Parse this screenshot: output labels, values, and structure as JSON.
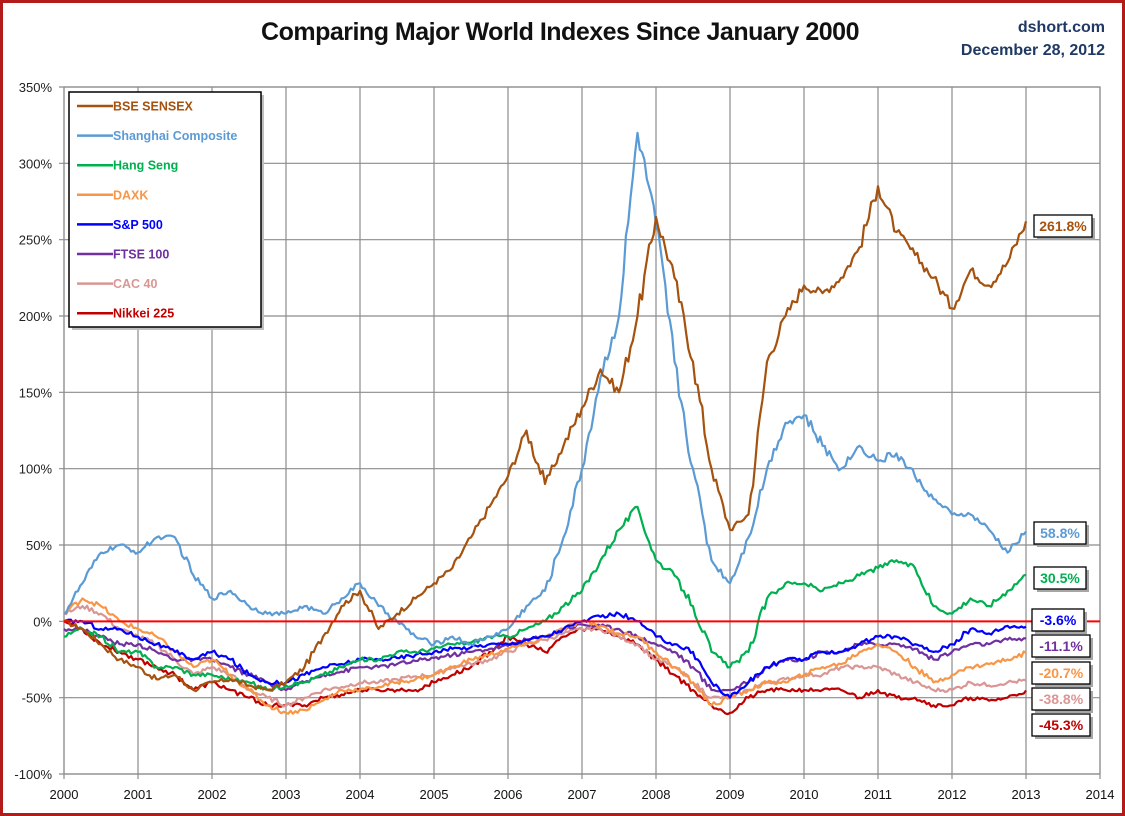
{
  "header": {
    "title": "Comparing Major World Indexes Since January 2000",
    "source": "dshort.com",
    "date": "December 28, 2012"
  },
  "chart_data": {
    "type": "line",
    "title": "Comparing Major World Indexes Since January 2000",
    "xlabel": "",
    "ylabel": "",
    "xlim": [
      2000,
      2014
    ],
    "ylim": [
      -100,
      350
    ],
    "x_ticks": [
      "2000",
      "2001",
      "2002",
      "2003",
      "2004",
      "2005",
      "2006",
      "2007",
      "2008",
      "2009",
      "2010",
      "2011",
      "2012",
      "2013",
      "2014"
    ],
    "y_ticks": [
      "350%",
      "300%",
      "250%",
      "200%",
      "150%",
      "100%",
      "50%",
      "0%",
      "-50%",
      "-100%"
    ],
    "y_tick_values": [
      350,
      300,
      250,
      200,
      150,
      100,
      50,
      0,
      -50,
      -100
    ],
    "grid": true,
    "legend_position": "top-left",
    "reference_line": {
      "value": 0,
      "color": "#ff0000"
    },
    "x": [
      2000.0,
      2000.25,
      2000.5,
      2000.75,
      2001.0,
      2001.25,
      2001.5,
      2001.75,
      2002.0,
      2002.25,
      2002.5,
      2002.75,
      2003.0,
      2003.25,
      2003.5,
      2003.75,
      2004.0,
      2004.25,
      2004.5,
      2004.75,
      2005.0,
      2005.25,
      2005.5,
      2005.75,
      2006.0,
      2006.25,
      2006.5,
      2006.75,
      2007.0,
      2007.25,
      2007.5,
      2007.75,
      2008.0,
      2008.25,
      2008.5,
      2008.75,
      2009.0,
      2009.25,
      2009.5,
      2009.75,
      2010.0,
      2010.25,
      2010.5,
      2010.75,
      2011.0,
      2011.25,
      2011.5,
      2011.75,
      2012.0,
      2012.25,
      2012.5,
      2012.75,
      2013.0
    ],
    "series": [
      {
        "name": "BSE SENSEX",
        "color": "#a5520f",
        "values": [
          0,
          -5,
          -15,
          -25,
          -30,
          -38,
          -35,
          -45,
          -40,
          -38,
          -42,
          -45,
          -40,
          -30,
          -10,
          10,
          20,
          -5,
          5,
          15,
          25,
          35,
          55,
          75,
          95,
          125,
          90,
          115,
          140,
          165,
          150,
          200,
          265,
          225,
          170,
          100,
          60,
          70,
          170,
          200,
          220,
          215,
          225,
          245,
          285,
          255,
          240,
          225,
          205,
          230,
          220,
          235,
          262
        ]
      },
      {
        "name": "Shanghai Composite",
        "color": "#5b9bd5",
        "values": [
          5,
          25,
          45,
          50,
          45,
          55,
          55,
          30,
          15,
          20,
          10,
          5,
          5,
          10,
          5,
          15,
          25,
          10,
          0,
          -10,
          -15,
          -10,
          -15,
          -10,
          -5,
          10,
          20,
          55,
          100,
          160,
          200,
          320,
          260,
          170,
          100,
          40,
          25,
          55,
          100,
          130,
          135,
          115,
          100,
          115,
          105,
          110,
          95,
          80,
          70,
          70,
          60,
          45,
          58.8
        ]
      },
      {
        "name": "Hang Seng",
        "color": "#00b050",
        "values": [
          -10,
          -5,
          -10,
          -20,
          -20,
          -30,
          -30,
          -35,
          -35,
          -38,
          -40,
          -45,
          -42,
          -40,
          -35,
          -30,
          -25,
          -25,
          -20,
          -20,
          -18,
          -15,
          -14,
          -10,
          -10,
          -5,
          0,
          10,
          20,
          40,
          60,
          75,
          40,
          30,
          10,
          -20,
          -30,
          -20,
          15,
          25,
          25,
          20,
          25,
          30,
          35,
          40,
          35,
          10,
          5,
          15,
          10,
          20,
          30.5
        ]
      },
      {
        "name": "DAXK",
        "color": "#f79646",
        "values": [
          5,
          15,
          10,
          0,
          -5,
          -10,
          -20,
          -30,
          -25,
          -35,
          -45,
          -55,
          -60,
          -58,
          -52,
          -45,
          -45,
          -43,
          -40,
          -38,
          -35,
          -30,
          -25,
          -22,
          -18,
          -15,
          -10,
          -5,
          0,
          -3,
          -8,
          -10,
          -20,
          -30,
          -40,
          -55,
          -50,
          -45,
          -40,
          -40,
          -35,
          -30,
          -28,
          -20,
          -15,
          -20,
          -30,
          -40,
          -35,
          -30,
          -28,
          -25,
          -20.7
        ]
      },
      {
        "name": "S&P 500",
        "color": "#0000ff",
        "values": [
          0,
          0,
          -5,
          -5,
          -10,
          -15,
          -20,
          -25,
          -20,
          -25,
          -35,
          -40,
          -40,
          -35,
          -30,
          -28,
          -25,
          -25,
          -24,
          -22,
          -20,
          -18,
          -17,
          -15,
          -15,
          -12,
          -10,
          -5,
          0,
          3,
          5,
          0,
          -10,
          -15,
          -20,
          -40,
          -50,
          -40,
          -30,
          -25,
          -25,
          -20,
          -20,
          -15,
          -10,
          -10,
          -15,
          -20,
          -15,
          -5,
          -8,
          -3,
          -3.6
        ]
      },
      {
        "name": "FTSE 100",
        "color": "#7030a0",
        "values": [
          -5,
          -5,
          -10,
          -15,
          -15,
          -20,
          -25,
          -25,
          -25,
          -30,
          -35,
          -40,
          -45,
          -40,
          -35,
          -33,
          -30,
          -30,
          -28,
          -26,
          -24,
          -22,
          -20,
          -18,
          -16,
          -12,
          -10,
          -5,
          -2,
          -3,
          -5,
          -10,
          -15,
          -20,
          -30,
          -45,
          -45,
          -40,
          -30,
          -25,
          -25,
          -20,
          -20,
          -15,
          -15,
          -15,
          -18,
          -25,
          -20,
          -15,
          -15,
          -12,
          -11.1
        ]
      },
      {
        "name": "CAC 40",
        "color": "#da9694",
        "values": [
          5,
          10,
          5,
          -5,
          -10,
          -15,
          -25,
          -35,
          -30,
          -35,
          -45,
          -50,
          -55,
          -50,
          -45,
          -43,
          -40,
          -40,
          -38,
          -36,
          -35,
          -30,
          -28,
          -25,
          -20,
          -15,
          -12,
          -8,
          -5,
          -5,
          -10,
          -15,
          -25,
          -30,
          -40,
          -50,
          -50,
          -45,
          -40,
          -38,
          -35,
          -35,
          -30,
          -30,
          -30,
          -35,
          -40,
          -45,
          -45,
          -40,
          -42,
          -40,
          -38.8
        ]
      },
      {
        "name": "Nikkei 225",
        "color": "#c00000",
        "values": [
          0,
          -5,
          -15,
          -20,
          -25,
          -30,
          -35,
          -45,
          -40,
          -45,
          -50,
          -55,
          -55,
          -55,
          -50,
          -48,
          -45,
          -45,
          -45,
          -45,
          -40,
          -35,
          -30,
          -20,
          -10,
          -15,
          -20,
          -10,
          -5,
          -5,
          -10,
          -15,
          -25,
          -35,
          -45,
          -55,
          -60,
          -50,
          -45,
          -45,
          -45,
          -45,
          -45,
          -50,
          -45,
          -50,
          -50,
          -55,
          -55,
          -50,
          -52,
          -50,
          -45.3
        ]
      }
    ],
    "end_labels": [
      {
        "series": "BSE SENSEX",
        "text": "261.8%",
        "value": 261.8,
        "color": "#a5520f"
      },
      {
        "series": "Shanghai Composite",
        "text": "58.8%",
        "value": 58.8,
        "color": "#5b9bd5"
      },
      {
        "series": "Hang Seng",
        "text": "30.5%",
        "value": 30.5,
        "color": "#00b050"
      },
      {
        "series": "S&P 500",
        "text": "-3.6%",
        "value": -3.6,
        "color": "#0000ff"
      },
      {
        "series": "FTSE 100",
        "text": "-11.1%",
        "value": -11.1,
        "color": "#7030a0"
      },
      {
        "series": "DAXK",
        "text": "-20.7%",
        "value": -20.7,
        "color": "#f79646"
      },
      {
        "series": "CAC 40",
        "text": "-38.8%",
        "value": -38.8,
        "color": "#da9694"
      },
      {
        "series": "Nikkei 225",
        "text": "-45.3%",
        "value": -45.3,
        "color": "#c00000"
      }
    ]
  }
}
